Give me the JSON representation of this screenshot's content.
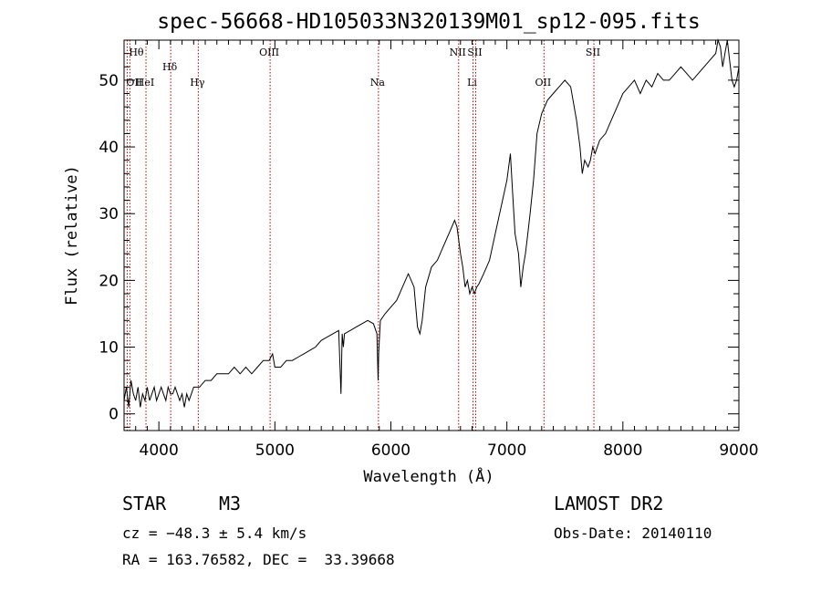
{
  "chart_data": {
    "type": "line",
    "title": "spec-56668-HD105033N320139M01_sp12-095.fits",
    "xlabel": "Wavelength (Å)",
    "ylabel": "Flux (relative)",
    "xlim": [
      3700,
      9000
    ],
    "ylim": [
      -2.5,
      56
    ],
    "xticks": [
      4000,
      5000,
      6000,
      7000,
      8000,
      9000
    ],
    "yticks": [
      0,
      10,
      20,
      30,
      40,
      50
    ],
    "grid": false,
    "legend": "none",
    "series": [
      {
        "x": [
          3700,
          3720,
          3740,
          3760,
          3780,
          3800,
          3820,
          3840,
          3860,
          3880,
          3900,
          3920,
          3940,
          3960,
          3980,
          4000,
          4020,
          4040,
          4060,
          4080,
          4100,
          4120,
          4140,
          4160,
          4180,
          4200,
          4220,
          4240,
          4260,
          4280,
          4300,
          4350,
          4400,
          4450,
          4500,
          4550,
          4600,
          4650,
          4700,
          4750,
          4800,
          4850,
          4900,
          4950,
          4980,
          5000,
          5050,
          5100,
          5150,
          5200,
          5250,
          5300,
          5350,
          5400,
          5450,
          5500,
          5550,
          5570,
          5580,
          5590,
          5600,
          5650,
          5700,
          5750,
          5800,
          5850,
          5880,
          5890,
          5895,
          5900,
          5910,
          5950,
          6000,
          6050,
          6100,
          6150,
          6200,
          6230,
          6250,
          6270,
          6300,
          6350,
          6400,
          6450,
          6500,
          6550,
          6570,
          6600,
          6620,
          6640,
          6660,
          6680,
          6700,
          6720,
          6740,
          6760,
          6800,
          6850,
          6900,
          6950,
          7000,
          7030,
          7050,
          7070,
          7100,
          7120,
          7140,
          7160,
          7180,
          7200,
          7230,
          7260,
          7300,
          7350,
          7400,
          7450,
          7500,
          7550,
          7600,
          7630,
          7650,
          7670,
          7700,
          7720,
          7740,
          7760,
          7800,
          7850,
          7900,
          7950,
          8000,
          8050,
          8100,
          8150,
          8200,
          8250,
          8300,
          8350,
          8400,
          8450,
          8500,
          8550,
          8600,
          8650,
          8700,
          8750,
          8800,
          8820,
          8840,
          8860,
          8880,
          8900,
          8920,
          8940,
          8960,
          8980,
          9000
        ],
        "y": [
          2,
          4,
          1,
          5,
          3,
          2,
          4,
          1,
          3,
          2,
          4,
          2,
          3,
          4,
          2,
          3,
          4,
          3,
          2,
          4,
          3,
          3,
          4,
          3,
          2,
          3,
          1,
          3,
          2,
          3,
          4,
          4,
          5,
          5,
          6,
          6,
          6,
          7,
          6,
          7,
          6,
          7,
          8,
          8,
          9,
          7,
          7,
          8,
          8,
          8.5,
          9,
          9.5,
          10,
          11,
          11.5,
          12,
          12.5,
          3,
          12,
          10,
          12,
          12.5,
          13,
          13.5,
          14,
          13.5,
          12,
          5,
          9,
          11,
          14,
          15,
          16,
          17,
          19,
          21,
          19,
          13,
          12,
          14,
          19,
          22,
          23,
          25,
          27,
          29,
          28,
          24,
          22,
          19,
          20,
          18,
          19,
          18,
          19,
          19.5,
          21,
          23,
          27,
          31,
          35,
          39,
          33,
          27,
          24,
          19,
          22,
          24,
          27,
          30,
          35,
          42,
          45,
          47,
          48,
          49,
          50,
          49,
          44,
          40,
          36,
          38,
          37,
          38,
          40,
          39,
          41,
          42,
          44,
          46,
          48,
          49,
          50,
          48,
          50,
          49,
          51,
          50,
          50,
          51,
          52,
          51,
          50,
          51,
          52,
          53,
          54,
          56,
          55,
          52,
          54,
          56,
          53,
          50,
          49,
          50,
          52
        ]
      }
    ],
    "annotations": [
      {
        "label": "Hθ",
        "x": 3750
      },
      {
        "label": "HeI",
        "x": 3889
      },
      {
        "label": "Hδ",
        "x": 4102
      },
      {
        "label": "Hγ",
        "x": 4340
      },
      {
        "label": "OIII",
        "x": 4959
      },
      {
        "label": "Na",
        "x": 5893
      },
      {
        "label": "NII",
        "x": 6584
      },
      {
        "label": "Li",
        "x": 6708
      },
      {
        "label": "SII",
        "x": 6731
      },
      {
        "label": "OII",
        "x": 7320
      },
      {
        "label": "SII",
        "x": 7750
      },
      {
        "label": "OII",
        "x": 3727
      }
    ]
  },
  "info": {
    "class": "STAR",
    "subclass": "M3",
    "survey": "LAMOST DR2",
    "cz": "cz = −48.3 ± 5.4 km/s",
    "obs_date": "Obs-Date: 20140110",
    "coords": "RA = 163.76582, DEC =  33.39668"
  }
}
